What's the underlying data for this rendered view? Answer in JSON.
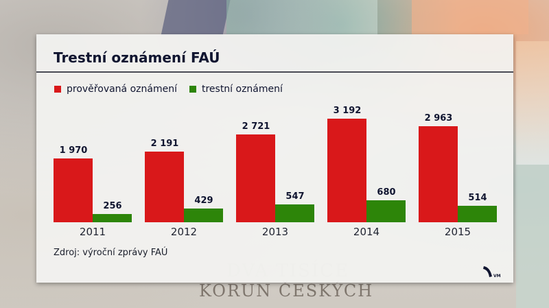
{
  "title": "Trestní oznámení FAÚ",
  "legend": [
    {
      "label": "prověřovaná oznámení",
      "color": "#d9181a"
    },
    {
      "label": "trestní oznámení",
      "color": "#2d8509"
    }
  ],
  "source": "Zdroj: výroční zprávy FAÚ",
  "logo_text": "VM",
  "colors": {
    "red": "#d9181a",
    "green": "#2d8509",
    "title": "#101530"
  },
  "groups": [
    {
      "year": "2011",
      "red_label": "1 970",
      "green_label": "256"
    },
    {
      "year": "2012",
      "red_label": "2 191",
      "green_label": "429"
    },
    {
      "year": "2013",
      "red_label": "2 721",
      "green_label": "547"
    },
    {
      "year": "2014",
      "red_label": "3 192",
      "green_label": "680"
    },
    {
      "year": "2015",
      "red_label": "2 963",
      "green_label": "514"
    }
  ],
  "chart_data": {
    "type": "bar",
    "title": "Trestní oznámení FAÚ",
    "categories": [
      "2011",
      "2012",
      "2013",
      "2014",
      "2015"
    ],
    "series": [
      {
        "name": "prověřovaná oznámení",
        "color": "#d9181a",
        "values": [
          1970,
          2191,
          2721,
          3192,
          2963
        ]
      },
      {
        "name": "trestní oznámení",
        "color": "#2d8509",
        "values": [
          256,
          429,
          547,
          680,
          514
        ]
      }
    ],
    "xlabel": "",
    "ylabel": "",
    "ylim": [
      0,
      3500
    ],
    "grid": false,
    "legend_position": "top-left",
    "data_labels": true,
    "source": "Zdroj: výroční zprávy FAÚ"
  }
}
